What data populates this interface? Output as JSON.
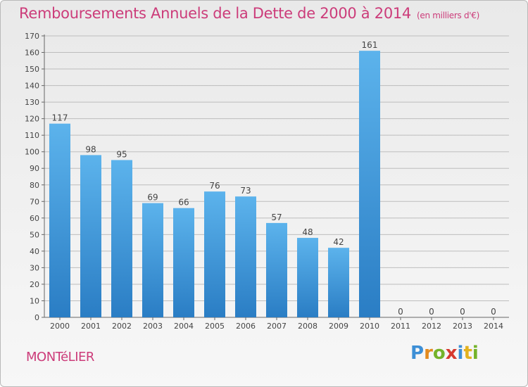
{
  "title": "Remboursements Annuels de la Dette de 2000 à 2014",
  "unit_note": "(en milliers d'€)",
  "town": "MONTéLIER",
  "logo": {
    "letters": [
      "P",
      "r",
      "o",
      "x",
      "i",
      "t",
      "i"
    ],
    "colors": [
      "#3d8fd6",
      "#e38a1e",
      "#74b32a",
      "#d63a2f",
      "#3d8fd6",
      "#e3b21e",
      "#74b32a"
    ]
  },
  "colors": {
    "bar_light": "#5cb3ec",
    "bar_dark": "#2a7dc4",
    "title": "#cc3c7a",
    "grid": "#bdbdbd"
  },
  "chart_data": {
    "type": "bar",
    "title": "Remboursements Annuels de la Dette de 2000 à 2014",
    "categories": [
      "2000",
      "2001",
      "2002",
      "2003",
      "2004",
      "2005",
      "2006",
      "2007",
      "2008",
      "2009",
      "2010",
      "2011",
      "2012",
      "2013",
      "2014"
    ],
    "values": [
      117,
      98,
      95,
      69,
      66,
      76,
      73,
      57,
      48,
      42,
      161,
      0,
      0,
      0,
      0
    ],
    "ylim": [
      0,
      170
    ],
    "yticks": [
      0,
      10,
      20,
      30,
      40,
      50,
      60,
      70,
      80,
      90,
      100,
      110,
      120,
      130,
      140,
      150,
      160,
      170
    ],
    "grid": true,
    "data_labels": true
  }
}
